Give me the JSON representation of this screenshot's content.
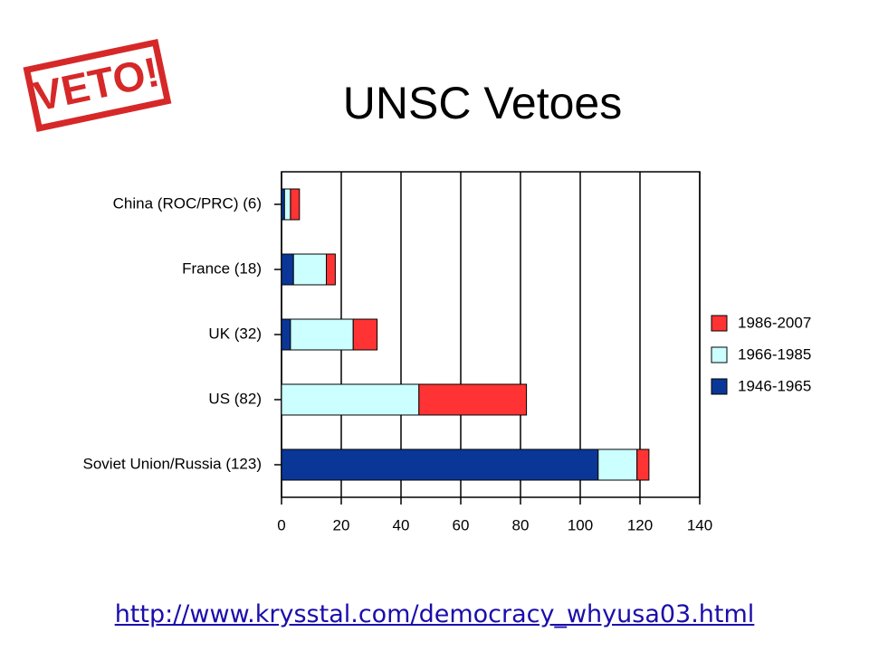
{
  "logo": "VETO!",
  "link": "http://www.krysstal.com/democracy_whyusa03.html",
  "chart_data": {
    "type": "stacked-barh",
    "title": "UNSC Vetoes",
    "categories": [
      "China (ROC/PRC) (6)",
      "France (18)",
      "UK (32)",
      "US (82)",
      "Soviet Union/Russia (123)"
    ],
    "series": [
      {
        "name": "1946-1965",
        "color": "#0a3797",
        "values": [
          1,
          4,
          3,
          0,
          106
        ]
      },
      {
        "name": "1966-1985",
        "color": "#ccffff",
        "values": [
          2,
          11,
          21,
          46,
          13
        ]
      },
      {
        "name": "1986-2007",
        "color": "#ff3333",
        "values": [
          3,
          3,
          8,
          36,
          4
        ]
      }
    ],
    "xlim": [
      0,
      140
    ],
    "xticks": [
      0,
      20,
      40,
      60,
      80,
      100,
      120,
      140
    ],
    "grid": true,
    "legend": "right"
  }
}
